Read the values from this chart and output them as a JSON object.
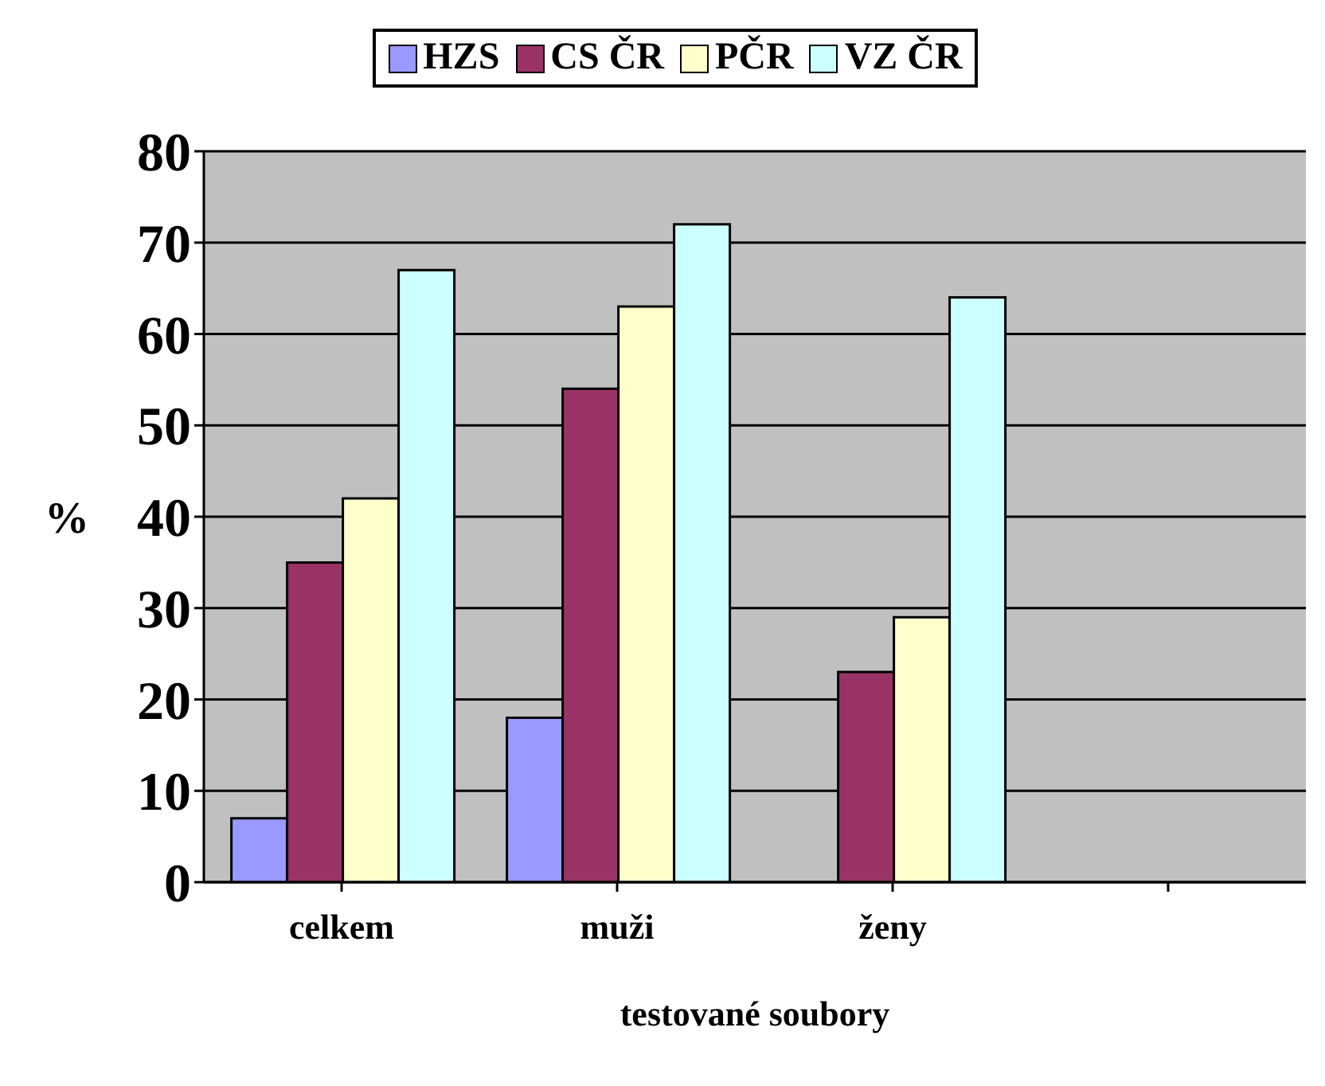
{
  "chart_data": {
    "type": "bar",
    "xlabel": "testované soubory",
    "ylabel": "%",
    "categories": [
      "celkem",
      "muži",
      "ženy",
      null
    ],
    "series": [
      {
        "name": "HZS",
        "color": "#9999ff",
        "values": [
          7,
          18,
          0,
          null
        ]
      },
      {
        "name": "CS ČR",
        "color": "#993366",
        "values": [
          35,
          54,
          23,
          null
        ]
      },
      {
        "name": "PČR",
        "color": "#ffffcc",
        "values": [
          42,
          63,
          29,
          null
        ]
      },
      {
        "name": "VZ ČR",
        "color": "#ccffff",
        "values": [
          67,
          72,
          64,
          null
        ]
      }
    ],
    "ylim": [
      0,
      80
    ],
    "yticks": [
      0,
      10,
      20,
      30,
      40,
      50,
      60,
      70,
      80
    ],
    "grid": "y",
    "legend": "top"
  }
}
